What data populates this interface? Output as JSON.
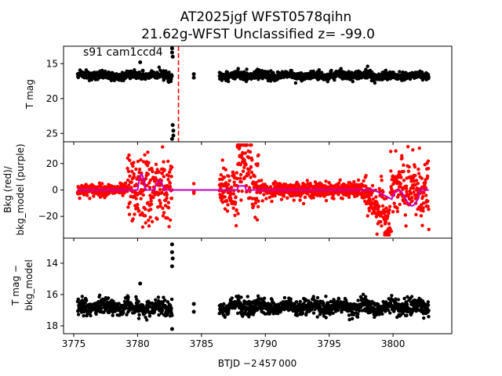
{
  "figure": {
    "title_line1": "AT2025jgf  WFST0578qihn",
    "title_line2": "21.62g-WFST Unclassified z= -99.0"
  },
  "chart_data": [
    {
      "type": "scatter",
      "panel": "top",
      "ylabel": "T mag",
      "annotation": "s91 cam1ccd4",
      "xlim": [
        3774.2,
        3804.6
      ],
      "ylim": [
        26.2,
        12.5
      ],
      "y_inverted": true,
      "yticks": [
        15,
        20,
        25
      ],
      "xticks": [
        3775,
        3780,
        3785,
        3790,
        3795,
        3800
      ],
      "vline_x": 3783.2,
      "vline_color": "#ff0000",
      "point_color": "#000000",
      "segments": [
        {
          "x_start": 3775.3,
          "x_end": 3782.7,
          "y_center": 16.7,
          "spread": 0.55
        },
        {
          "x_start": 3786.4,
          "x_end": 3802.8,
          "y_center": 16.7,
          "spread": 0.55
        }
      ],
      "outliers": [
        {
          "x": 3780.2,
          "y": 14.8
        },
        {
          "x": 3780.4,
          "y": 16.0
        },
        {
          "x": 3782.7,
          "y": 12.8
        },
        {
          "x": 3782.7,
          "y": 13.4
        },
        {
          "x": 3782.75,
          "y": 14.0
        },
        {
          "x": 3782.75,
          "y": 23.8
        },
        {
          "x": 3782.8,
          "y": 24.6
        },
        {
          "x": 3782.8,
          "y": 25.3
        },
        {
          "x": 3782.7,
          "y": 25.8
        },
        {
          "x": 3784.4,
          "y": 16.5
        },
        {
          "x": 3784.4,
          "y": 17.0
        }
      ]
    },
    {
      "type": "line+scatter",
      "panel": "middle",
      "ylabel_line1": "Bkg (red)/",
      "ylabel_line2": "bkg_model (purple)",
      "xlim": [
        3774.2,
        3804.6
      ],
      "ylim": [
        -36.5,
        36.5
      ],
      "yticks": [
        -20,
        0,
        20
      ],
      "xticks": [
        3775,
        3780,
        3785,
        3790,
        3795,
        3800
      ],
      "series": [
        {
          "role": "bkg",
          "color": "#ff0000",
          "kind": "scatter"
        },
        {
          "role": "bkg_model",
          "color": "#bf00bf",
          "kind": "line"
        }
      ]
    },
    {
      "type": "scatter",
      "panel": "bottom",
      "ylabel_line1": "T mag −",
      "ylabel_line2": "bkg_model",
      "xlabel": "BTJD −2 457 000",
      "xlim": [
        3774.2,
        3804.6
      ],
      "ylim": [
        18.5,
        12.4
      ],
      "y_inverted": true,
      "yticks": [
        14,
        16,
        18
      ],
      "xticks": [
        3775,
        3780,
        3785,
        3790,
        3795,
        3800
      ],
      "point_color": "#000000",
      "segments": [
        {
          "x_start": 3775.3,
          "x_end": 3782.7,
          "y_center": 16.8,
          "spread": 0.45
        },
        {
          "x_start": 3786.4,
          "x_end": 3802.8,
          "y_center": 16.8,
          "spread": 0.45
        }
      ],
      "outliers": [
        {
          "x": 3780.2,
          "y": 15.3
        },
        {
          "x": 3782.7,
          "y": 12.8
        },
        {
          "x": 3782.7,
          "y": 13.3
        },
        {
          "x": 3782.75,
          "y": 13.7
        },
        {
          "x": 3782.7,
          "y": 14.2
        },
        {
          "x": 3782.7,
          "y": 18.2
        },
        {
          "x": 3784.4,
          "y": 16.6
        },
        {
          "x": 3784.4,
          "y": 17.1
        }
      ]
    }
  ]
}
